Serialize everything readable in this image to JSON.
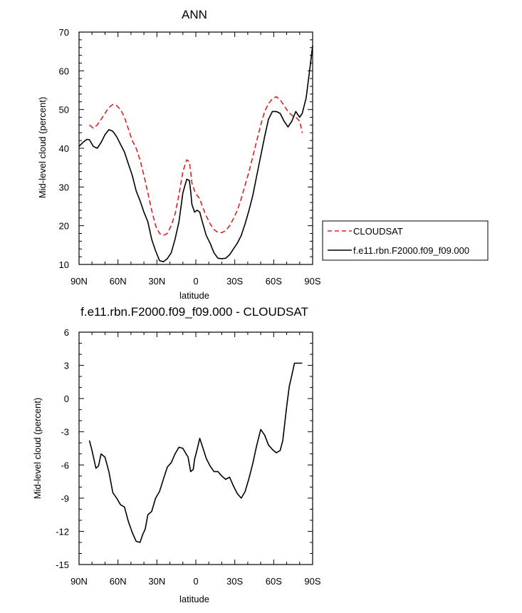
{
  "colors": {
    "cloudsat": "#e0201e",
    "model": "#000000",
    "axis": "#000000"
  },
  "chart_data": [
    {
      "type": "line",
      "title": "ANN",
      "xlabel": "latitude",
      "ylabel": "Mid-level cloud (percent)",
      "xlim": [
        90,
        -90
      ],
      "ylim": [
        10,
        70
      ],
      "xticks": [
        90,
        60,
        30,
        0,
        -30,
        -60,
        -90
      ],
      "xtick_labels": [
        "90N",
        "60N",
        "30N",
        "0",
        "30S",
        "60S",
        "90S"
      ],
      "yticks": [
        10,
        20,
        30,
        40,
        50,
        60,
        70
      ],
      "ytick_labels": [
        "10",
        "20",
        "30",
        "40",
        "50",
        "60",
        "70"
      ],
      "legend": {
        "placement": "right",
        "entries": [
          "CLOUDSAT",
          "f.e11.rbn.F2000.f09_f09.000"
        ]
      },
      "series": [
        {
          "name": "CLOUDSAT",
          "style": "dashed",
          "color": "#e0201e",
          "x": [
            82,
            79,
            76,
            73,
            70,
            67,
            64,
            61,
            58,
            55,
            52,
            49,
            46,
            43,
            40,
            37,
            34,
            31,
            28,
            25,
            22,
            19,
            16,
            13,
            10,
            7,
            5,
            4,
            3,
            1,
            -1,
            -3,
            -5,
            -8,
            -11,
            -14,
            -17,
            -20,
            -23,
            -26,
            -29,
            -32,
            -35,
            -38,
            -41,
            -44,
            -47,
            -50,
            -53,
            -56,
            -59,
            -62,
            -65,
            -68,
            -71,
            -74,
            -77,
            -80,
            -82
          ],
          "y": [
            46,
            45.2,
            46,
            47.5,
            49,
            50.5,
            51.3,
            51,
            50,
            48,
            45,
            42,
            40,
            37,
            33,
            28.5,
            24,
            20,
            18,
            17.5,
            18,
            20,
            23,
            28,
            34,
            37,
            36.5,
            34,
            31,
            29,
            27.8,
            27,
            25,
            22.5,
            20.5,
            19,
            18.3,
            18.2,
            18.7,
            20,
            21.8,
            24,
            27,
            30.5,
            34,
            38,
            42,
            46,
            49.5,
            51.5,
            52.8,
            53.3,
            52.5,
            51,
            49.5,
            48.5,
            48,
            47,
            44
          ]
        },
        {
          "name": "f.e11.rbn.F2000.f09_f09.000",
          "style": "solid",
          "color": "#000000",
          "x": [
            90,
            87,
            84,
            82,
            79,
            76,
            73,
            70,
            67,
            64,
            61,
            58,
            55,
            52,
            49,
            46,
            43,
            40,
            37,
            34,
            31,
            28,
            25,
            22,
            19,
            16,
            13,
            10,
            7,
            5,
            4,
            3,
            1,
            -1,
            -3,
            -5,
            -8,
            -11,
            -14,
            -17,
            -20,
            -23,
            -26,
            -29,
            -32,
            -35,
            -38,
            -41,
            -44,
            -47,
            -50,
            -53,
            -56,
            -59,
            -62,
            -65,
            -68,
            -71,
            -74,
            -77,
            -80,
            -82,
            -85,
            -88,
            -90
          ],
          "y": [
            40.5,
            41.5,
            42.3,
            42.2,
            40.5,
            40,
            41.5,
            43.5,
            44.8,
            44.4,
            43,
            41,
            39,
            36,
            33,
            29,
            26.5,
            23.5,
            21,
            16.5,
            13.5,
            11,
            10.7,
            11.5,
            13,
            16.5,
            21,
            28.5,
            32,
            31.7,
            29,
            25.5,
            23.5,
            24,
            23.5,
            21,
            17.5,
            15.5,
            13,
            11.6,
            11.5,
            11.6,
            12.5,
            14,
            15.5,
            17.5,
            20.5,
            24,
            28,
            33,
            38,
            43,
            47.5,
            49.5,
            49.5,
            49,
            47,
            45.5,
            47,
            49.5,
            48,
            49,
            53,
            61,
            66.5
          ]
        }
      ]
    },
    {
      "type": "line",
      "title": "f.e11.rbn.F2000.f09_f09.000 - CLOUDSAT",
      "xlabel": "latitude",
      "ylabel": "Mid-level cloud (percent)",
      "xlim": [
        90,
        -90
      ],
      "ylim": [
        -15,
        6
      ],
      "xticks": [
        90,
        60,
        30,
        0,
        -30,
        -60,
        -90
      ],
      "xtick_labels": [
        "90N",
        "60N",
        "30N",
        "0",
        "30S",
        "60S",
        "90S"
      ],
      "yticks": [
        -15,
        -12,
        -9,
        -6,
        -3,
        0,
        3,
        6
      ],
      "ytick_labels": [
        "-15",
        "-12",
        "-9",
        "-6",
        "-3",
        "0",
        "3",
        "6"
      ],
      "series": [
        {
          "style": "solid",
          "color": "#000000",
          "x": [
            82,
            80,
            77,
            75,
            73,
            70,
            67,
            64,
            61,
            58,
            55,
            52,
            49,
            46,
            43,
            41,
            39,
            37,
            34,
            31,
            28,
            25,
            22,
            19,
            16,
            13,
            10,
            8,
            6,
            4,
            2,
            1,
            -1,
            -3,
            -5,
            -8,
            -11,
            -14,
            -17,
            -20,
            -23,
            -26,
            -29,
            -32,
            -35,
            -38,
            -41,
            -44,
            -47,
            -50,
            -53,
            -56,
            -59,
            -62,
            -65,
            -67,
            -70,
            -72,
            -74,
            -76,
            -78,
            -80,
            -82
          ],
          "y": [
            -3.8,
            -4.7,
            -6.3,
            -6.1,
            -5,
            -5.3,
            -6.6,
            -8.5,
            -9,
            -9.6,
            -9.8,
            -11.1,
            -12.1,
            -12.9,
            -13,
            -12.3,
            -11.8,
            -10.5,
            -10.2,
            -9,
            -8.4,
            -7.3,
            -6.2,
            -5.8,
            -5,
            -4.4,
            -4.5,
            -4.9,
            -5.3,
            -6.6,
            -6.4,
            -5.5,
            -4.6,
            -3.6,
            -4.3,
            -5.4,
            -6.1,
            -6.6,
            -6.6,
            -7,
            -7.3,
            -7.1,
            -7.9,
            -8.6,
            -9,
            -8.4,
            -7.2,
            -5.8,
            -4.2,
            -2.8,
            -3.3,
            -4.2,
            -4.6,
            -4.9,
            -4.7,
            -3.8,
            -0.7,
            1.1,
            2.1,
            3.2,
            3.2,
            3.2,
            3.2
          ]
        }
      ]
    }
  ]
}
